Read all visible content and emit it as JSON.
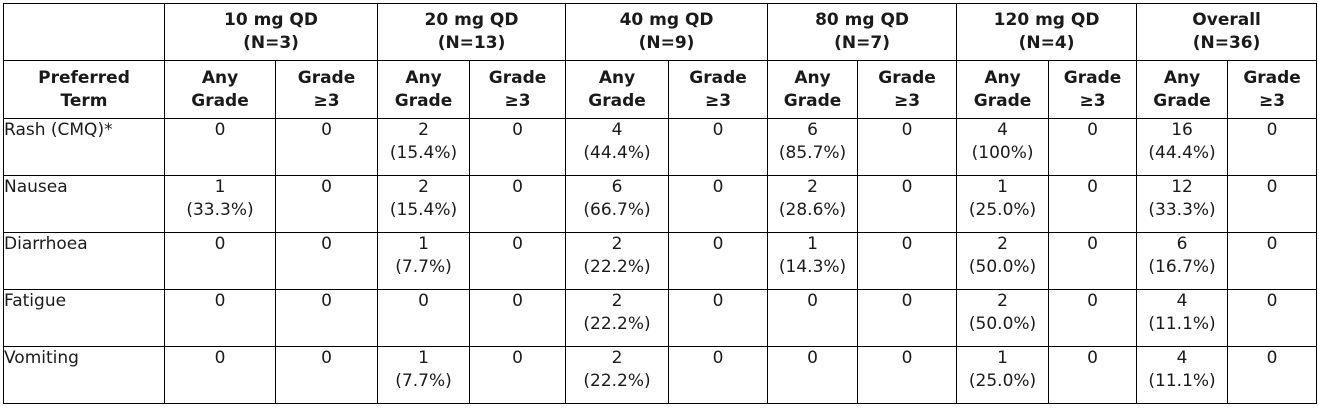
{
  "column_groups": [
    {
      "label": "10 mg QD",
      "n": "(N=3)"
    },
    {
      "label": "20 mg QD",
      "n": "(N=13)"
    },
    {
      "label": "40 mg QD",
      "n": "(N=9)"
    },
    {
      "label": "80 mg QD",
      "n": "(N=7)"
    },
    {
      "label": "120 mg QD",
      "n": "(N=4)"
    },
    {
      "label": "Overall",
      "n": "(N=36)"
    }
  ],
  "subheaders": {
    "term_line1": "Preferred",
    "term_line2": "Term",
    "any_line1": "Any",
    "any_line2": "Grade",
    "g3_line1": "Grade",
    "g3_line2": "≥3"
  },
  "rows": [
    {
      "term": "Rash (CMQ)*",
      "cells": [
        {
          "any_count": "0",
          "any_pct": "",
          "g3": "0"
        },
        {
          "any_count": "2",
          "any_pct": "(15.4%)",
          "g3": "0"
        },
        {
          "any_count": "4",
          "any_pct": "(44.4%)",
          "g3": "0"
        },
        {
          "any_count": "6",
          "any_pct": "(85.7%)",
          "g3": "0"
        },
        {
          "any_count": "4",
          "any_pct": "(100%)",
          "g3": "0"
        },
        {
          "any_count": "16",
          "any_pct": "(44.4%)",
          "g3": "0"
        }
      ]
    },
    {
      "term": "Nausea",
      "cells": [
        {
          "any_count": "1",
          "any_pct": "(33.3%)",
          "g3": "0"
        },
        {
          "any_count": "2",
          "any_pct": "(15.4%)",
          "g3": "0"
        },
        {
          "any_count": "6",
          "any_pct": "(66.7%)",
          "g3": "0"
        },
        {
          "any_count": "2",
          "any_pct": "(28.6%)",
          "g3": "0"
        },
        {
          "any_count": "1",
          "any_pct": "(25.0%)",
          "g3": "0"
        },
        {
          "any_count": "12",
          "any_pct": "(33.3%)",
          "g3": "0"
        }
      ]
    },
    {
      "term": "Diarrhoea",
      "cells": [
        {
          "any_count": "0",
          "any_pct": "",
          "g3": "0"
        },
        {
          "any_count": "1",
          "any_pct": "(7.7%)",
          "g3": "0"
        },
        {
          "any_count": "2",
          "any_pct": "(22.2%)",
          "g3": "0"
        },
        {
          "any_count": "1",
          "any_pct": "(14.3%)",
          "g3": "0"
        },
        {
          "any_count": "2",
          "any_pct": "(50.0%)",
          "g3": "0"
        },
        {
          "any_count": "6",
          "any_pct": "(16.7%)",
          "g3": "0"
        }
      ]
    },
    {
      "term": "Fatigue",
      "cells": [
        {
          "any_count": "0",
          "any_pct": "",
          "g3": "0"
        },
        {
          "any_count": "0",
          "any_pct": "",
          "g3": "0"
        },
        {
          "any_count": "2",
          "any_pct": "(22.2%)",
          "g3": "0"
        },
        {
          "any_count": "0",
          "any_pct": "",
          "g3": "0"
        },
        {
          "any_count": "2",
          "any_pct": "(50.0%)",
          "g3": "0"
        },
        {
          "any_count": "4",
          "any_pct": "(11.1%)",
          "g3": "0"
        }
      ]
    },
    {
      "term": "Vomiting",
      "cells": [
        {
          "any_count": "0",
          "any_pct": "",
          "g3": "0"
        },
        {
          "any_count": "1",
          "any_pct": "(7.7%)",
          "g3": "0"
        },
        {
          "any_count": "2",
          "any_pct": "(22.2%)",
          "g3": "0"
        },
        {
          "any_count": "0",
          "any_pct": "",
          "g3": "0"
        },
        {
          "any_count": "1",
          "any_pct": "(25.0%)",
          "g3": "0"
        },
        {
          "any_count": "4",
          "any_pct": "(11.1%)",
          "g3": "0"
        }
      ]
    }
  ]
}
